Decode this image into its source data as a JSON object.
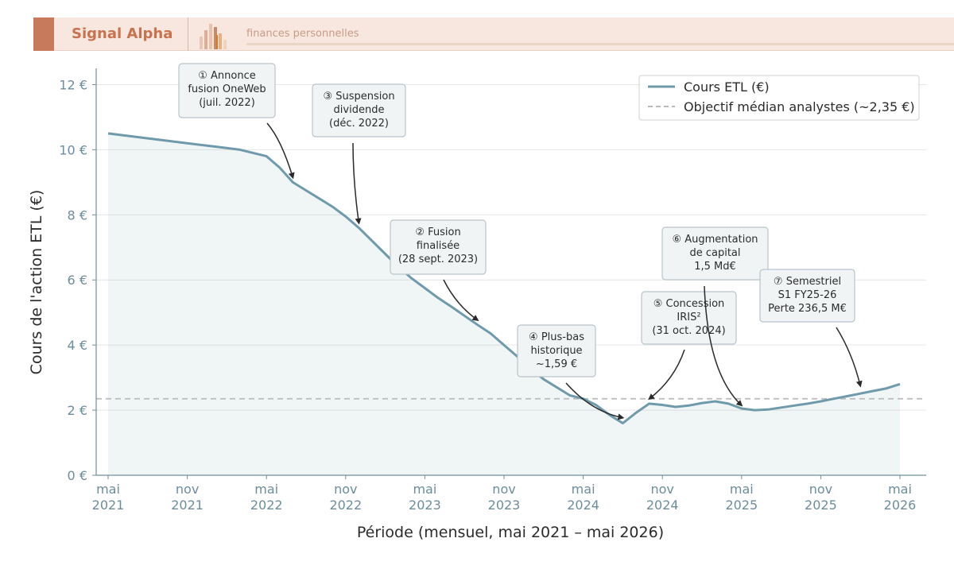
{
  "header": {
    "brand": "Signal Alpha",
    "tagline": "finances personnelles",
    "colors": {
      "bar": "#f7e7df",
      "accent": "#c87a5d",
      "brand_text": "#c8724f"
    }
  },
  "chart_data": {
    "type": "line",
    "xlabel": "Période (mensuel, mai 2021 – mai 2026)",
    "ylabel": "Cours de l'action ETL (€)",
    "ylim": [
      0,
      12.5
    ],
    "xlim": [
      "2021-05",
      "2026-05"
    ],
    "grid": true,
    "legend_position": "top-right",
    "x_ticks": [
      {
        "date": "2021-05",
        "label": [
          "mai",
          "2021"
        ]
      },
      {
        "date": "2021-11",
        "label": [
          "nov",
          "2021"
        ]
      },
      {
        "date": "2022-05",
        "label": [
          "mai",
          "2022"
        ]
      },
      {
        "date": "2022-11",
        "label": [
          "nov",
          "2022"
        ]
      },
      {
        "date": "2023-05",
        "label": [
          "mai",
          "2023"
        ]
      },
      {
        "date": "2023-11",
        "label": [
          "nov",
          "2023"
        ]
      },
      {
        "date": "2024-05",
        "label": [
          "mai",
          "2024"
        ]
      },
      {
        "date": "2024-11",
        "label": [
          "nov",
          "2024"
        ]
      },
      {
        "date": "2025-05",
        "label": [
          "mai",
          "2025"
        ]
      },
      {
        "date": "2025-11",
        "label": [
          "nov",
          "2025"
        ]
      },
      {
        "date": "2026-05",
        "label": [
          "mai",
          "2026"
        ]
      }
    ],
    "y_ticks": [
      {
        "value": 0,
        "label": "0 €"
      },
      {
        "value": 2,
        "label": "2 €"
      },
      {
        "value": 4,
        "label": "4 €"
      },
      {
        "value": 6,
        "label": "6 €"
      },
      {
        "value": 8,
        "label": "8 €"
      },
      {
        "value": 10,
        "label": "10 €"
      },
      {
        "value": 12,
        "label": "12 €"
      }
    ],
    "series": [
      {
        "name": "Cours ETL (€)",
        "color": "#6f9aab",
        "x": [
          "2021-05",
          "2021-07",
          "2021-09",
          "2021-11",
          "2022-01",
          "2022-03",
          "2022-05",
          "2022-06",
          "2022-07",
          "2022-08",
          "2022-09",
          "2022-10",
          "2022-11",
          "2022-12",
          "2023-01",
          "2023-02",
          "2023-03",
          "2023-04",
          "2023-05",
          "2023-06",
          "2023-07",
          "2023-08",
          "2023-09",
          "2023-10",
          "2023-11",
          "2023-12",
          "2024-01",
          "2024-02",
          "2024-03",
          "2024-04",
          "2024-05",
          "2024-06",
          "2024-07",
          "2024-08",
          "2024-09",
          "2024-10",
          "2024-11",
          "2024-12",
          "2025-01",
          "2025-02",
          "2025-03",
          "2025-04",
          "2025-05",
          "2025-06",
          "2025-07",
          "2025-08",
          "2025-09",
          "2025-10",
          "2025-11",
          "2025-12",
          "2026-01",
          "2026-02",
          "2026-03",
          "2026-04",
          "2026-05"
        ],
        "values": [
          10.5,
          10.4,
          10.3,
          10.2,
          10.1,
          10.0,
          9.8,
          9.45,
          9.0,
          8.75,
          8.5,
          8.25,
          7.95,
          7.6,
          7.2,
          6.8,
          6.4,
          6.05,
          5.75,
          5.45,
          5.18,
          4.9,
          4.62,
          4.35,
          4.0,
          3.65,
          3.28,
          2.95,
          2.7,
          2.45,
          2.35,
          2.15,
          1.85,
          1.6,
          1.92,
          2.2,
          2.16,
          2.1,
          2.14,
          2.22,
          2.27,
          2.2,
          2.05,
          2.0,
          2.02,
          2.08,
          2.14,
          2.2,
          2.27,
          2.35,
          2.43,
          2.51,
          2.59,
          2.67,
          2.8
        ]
      },
      {
        "name": "Objectif médian analystes (~2,35 €)",
        "color": "#bbbbbb",
        "dashed": true,
        "constant": 2.35
      }
    ],
    "annotations": [
      {
        "num": "①",
        "lines": [
          "Annonce",
          "fusion OneWeb",
          "(juil. 2022)"
        ],
        "target": [
          "2022-07",
          9.0
        ]
      },
      {
        "num": "③",
        "lines": [
          "Suspension",
          "dividende",
          "(déc. 2022)"
        ],
        "target": [
          "2022-12",
          7.6
        ]
      },
      {
        "num": "②",
        "lines": [
          "Fusion",
          "finalisée",
          "(28 sept. 2023)"
        ],
        "target": [
          "2023-09",
          4.62
        ]
      },
      {
        "num": "④",
        "lines": [
          "Plus-bas",
          "historique",
          "~1,59 €"
        ],
        "target": [
          "2024-08",
          1.62
        ]
      },
      {
        "num": "⑤",
        "lines": [
          "Concession",
          "IRIS²",
          "(31 oct. 2024)"
        ],
        "target": [
          "2024-10",
          2.2
        ]
      },
      {
        "num": "⑥",
        "lines": [
          "Augmentation",
          "de capital",
          "1,5 Md€"
        ],
        "target": [
          "2025-05",
          2.0
        ]
      },
      {
        "num": "⑦",
        "lines": [
          "Semestriel",
          "S1 FY25-26",
          "Perte 236,5 M€"
        ],
        "target": [
          "2026-02",
          2.6
        ]
      }
    ]
  }
}
